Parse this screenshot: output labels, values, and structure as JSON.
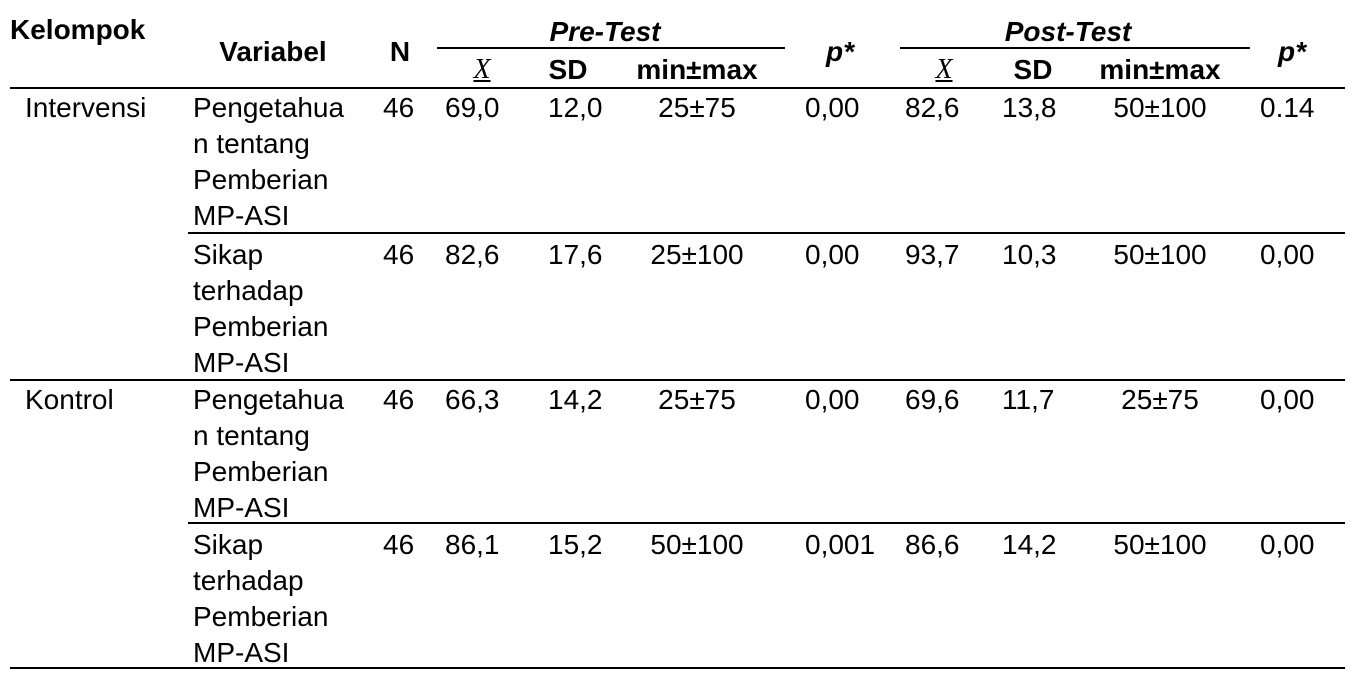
{
  "table": {
    "header": {
      "group": "Kelompok",
      "variable": "Variabel",
      "n": "N",
      "pre": "Pre-Test",
      "post": "Post-Test",
      "pre_columns": [
        "X",
        "SD",
        "min±max"
      ],
      "post_columns": [
        "X",
        "SD",
        "min±max"
      ],
      "p_pre": "p*",
      "p_post": "p*"
    },
    "groups": [
      {
        "name": "Intervensi",
        "rows": [
          {
            "variable": [
              "Pengetahua",
              "n tentang",
              "Pemberian",
              "MP-ASI"
            ],
            "n": "46",
            "pre": [
              "69,0",
              "12,0",
              "25±75"
            ],
            "p_pre": "0,00",
            "post": [
              "82,6",
              "13,8",
              "50±100"
            ],
            "p_post": "0.14"
          },
          {
            "variable": [
              "Sikap",
              "terhadap",
              "Pemberian",
              "MP-ASI"
            ],
            "n": "46",
            "pre": [
              "82,6",
              "17,6",
              "25±100"
            ],
            "p_pre": "0,00",
            "post": [
              "93,7",
              "10,3",
              "50±100"
            ],
            "p_post": "0,00"
          }
        ]
      },
      {
        "name": "Kontrol",
        "rows": [
          {
            "variable": [
              "Pengetahua",
              "n tentang",
              "Pemberian",
              "MP-ASI"
            ],
            "n": "46",
            "pre": [
              "66,3",
              "14,2",
              "25±75"
            ],
            "p_pre": "0,00",
            "post": [
              "69,6",
              "11,7",
              "25±75"
            ],
            "p_post": "0,00"
          },
          {
            "variable": [
              "Sikap",
              "terhadap",
              "Pemberian",
              "MP-ASI"
            ],
            "n": "46",
            "pre": [
              "86,1",
              "15,2",
              "50±100"
            ],
            "p_pre": "0,001",
            "post": [
              "86,6",
              "14,2",
              "50±100"
            ],
            "p_post": "0,00"
          }
        ]
      }
    ]
  }
}
